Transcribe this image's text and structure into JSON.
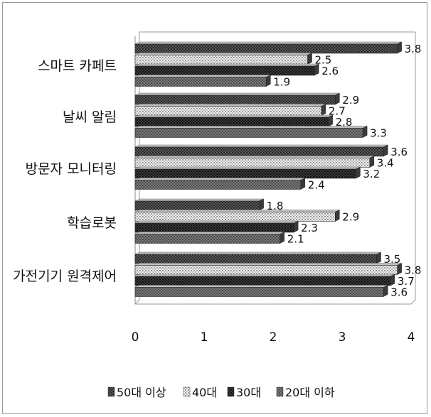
{
  "chart_data": {
    "type": "bar",
    "orientation": "horizontal",
    "categories": [
      "스마트 카페트",
      "날씨 알림",
      "방문자 모니터링",
      "학습로봇",
      "가전기기 원격제어"
    ],
    "series": [
      {
        "name": "50대 이상",
        "values": [
          3.8,
          2.9,
          3.6,
          1.8,
          3.5
        ],
        "color": "#4a4a4a"
      },
      {
        "name": "40대",
        "values": [
          2.5,
          2.7,
          3.4,
          2.9,
          3.8
        ],
        "color": "#cfcfcf"
      },
      {
        "name": "30대",
        "values": [
          2.6,
          2.8,
          3.2,
          2.3,
          3.7
        ],
        "color": "#2a2a2a"
      },
      {
        "name": "20대 이하",
        "values": [
          1.9,
          3.3,
          2.4,
          2.1,
          3.6
        ],
        "color": "#6a6a6a"
      }
    ],
    "xlim": [
      0,
      4
    ],
    "xticks": [
      "0",
      "1",
      "2",
      "3",
      "4"
    ],
    "grid": false,
    "legend_position": "bottom",
    "title": "",
    "xlabel": "",
    "ylabel": ""
  }
}
